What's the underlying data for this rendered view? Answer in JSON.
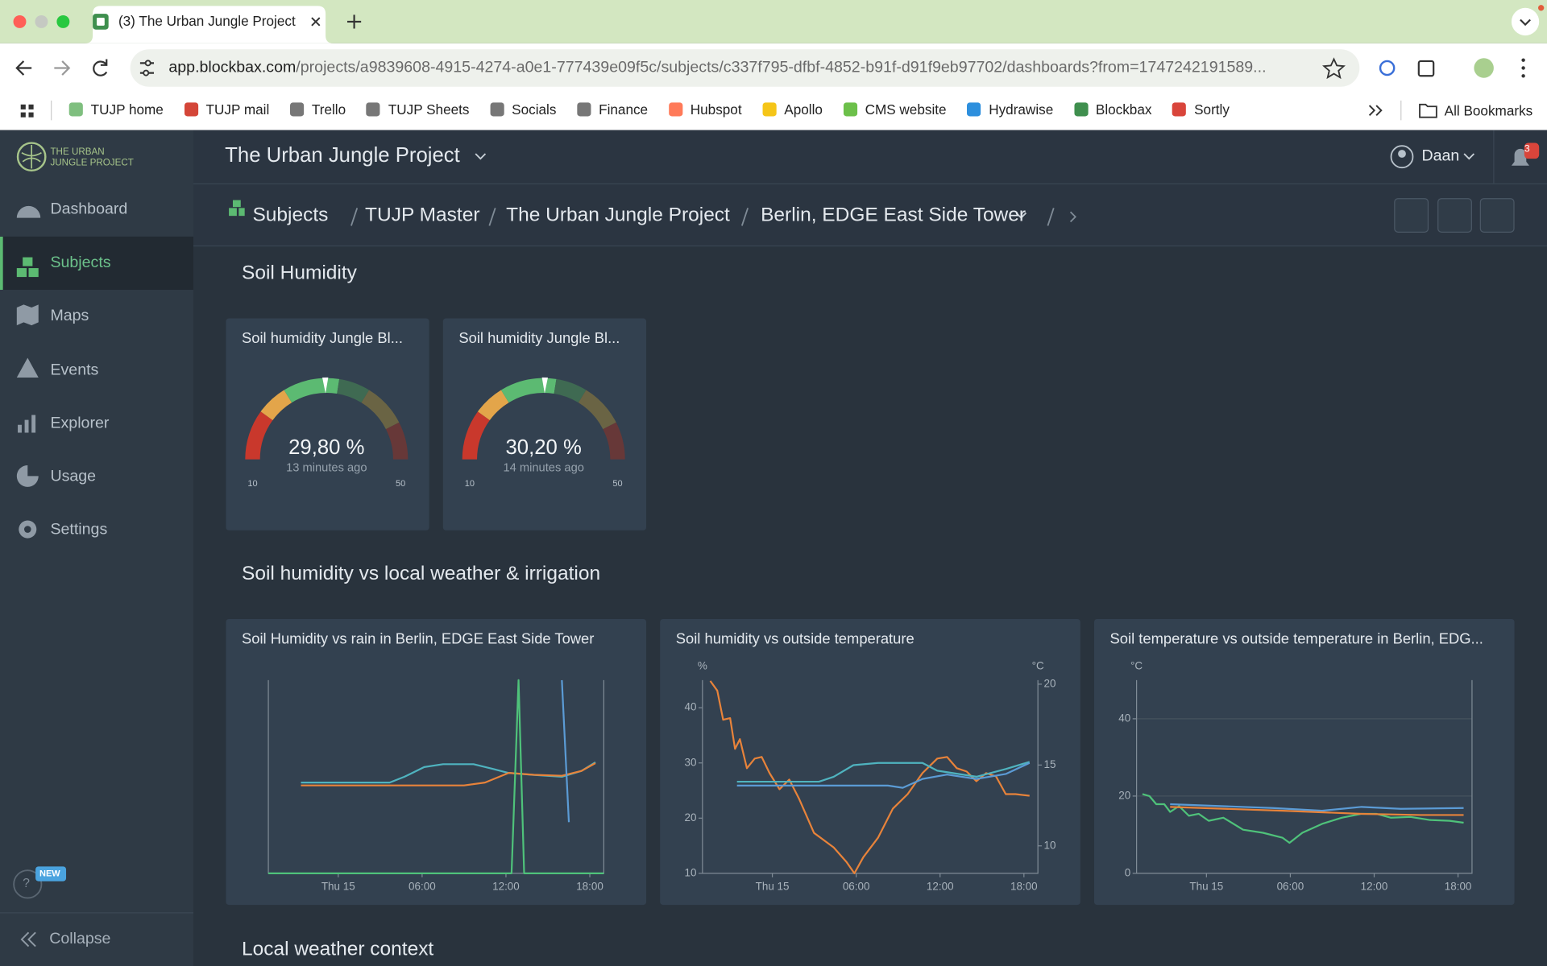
{
  "browser": {
    "tab_title": "(3) The Urban Jungle Project",
    "url_host": "app.blockbax.com",
    "url_path": "/projects/a9839608-4915-4274-a0e1-777439e09f5c/subjects/c337f795-dfbf-4852-b91f-d91f9eb97702/dashboards?from=1747242191589...",
    "bookmarks": [
      "TUJP home",
      "TUJP mail",
      "Trello",
      "TUJP Sheets",
      "Socials",
      "Finance",
      "Hubspot",
      "Apollo",
      "CMS website",
      "Hydrawise",
      "Blockbax",
      "Sortly"
    ],
    "all_bookmarks": "All Bookmarks"
  },
  "sidebar": {
    "logo": [
      "THE URBAN",
      "JUNGLE PROJECT"
    ],
    "items": [
      "Dashboard",
      "Subjects",
      "Maps",
      "Events",
      "Explorer",
      "Usage",
      "Settings"
    ],
    "help": "?",
    "badge": "NEW",
    "collapse": "Collapse"
  },
  "header": {
    "project": "The Urban Jungle Project",
    "user": "Daan",
    "notifications": 3
  },
  "breadcrumbs": [
    "Subjects",
    "TUJP Master",
    "The Urban Jungle Project",
    "Berlin, EDGE East Side Tower"
  ],
  "sections": [
    "Soil Humidity",
    "Soil humidity vs local weather & irrigation",
    "Local weather context"
  ],
  "gauges": [
    {
      "title": "Soil humidity Jungle Bl...",
      "value": 29.8,
      "value_label": "29,80 %",
      "time": "13 minutes ago",
      "min": 10,
      "max": 50,
      "bands": [
        {
          "from": 10,
          "to": 18,
          "color": "#c9382c"
        },
        {
          "from": 18,
          "to": 23,
          "color": "#e3a54a"
        },
        {
          "from": 23,
          "to": 32,
          "color": "#5cba72"
        },
        {
          "from": 32,
          "to": 37,
          "color": "#3f6a52"
        },
        {
          "from": 37,
          "to": 44,
          "color": "#6a6444"
        },
        {
          "from": 44,
          "to": 50,
          "color": "#673838"
        }
      ]
    },
    {
      "title": "Soil humidity Jungle Bl...",
      "value": 30.2,
      "value_label": "30,20 %",
      "time": "14 minutes ago",
      "min": 10,
      "max": 50,
      "bands": [
        {
          "from": 10,
          "to": 18,
          "color": "#c9382c"
        },
        {
          "from": 18,
          "to": 23,
          "color": "#e3a54a"
        },
        {
          "from": 23,
          "to": 32,
          "color": "#5cba72"
        },
        {
          "from": 32,
          "to": 37,
          "color": "#3f6a52"
        },
        {
          "from": 37,
          "to": 44,
          "color": "#6a6444"
        },
        {
          "from": 44,
          "to": 50,
          "color": "#673838"
        }
      ]
    }
  ],
  "charts": [
    {
      "type": "line",
      "title": "Soil Humidity vs rain in Berlin, EDGE East Side Tower",
      "xlim": [
        -5,
        19
      ],
      "xticks": [
        {
          "value": 0,
          "label": "Thu 15"
        },
        {
          "value": 6,
          "label": "06:00"
        },
        {
          "value": 12,
          "label": "12:00"
        },
        {
          "value": 18,
          "label": "18:00"
        }
      ],
      "ylim": [
        0,
        100
      ],
      "series": [
        {
          "color": "#4fb3bf",
          "x": [
            -2.67,
            3.68,
            4.74,
            6.15,
            7.5,
            9.68,
            11.1,
            12.15,
            13.9,
            16,
            17.4,
            18.4
          ],
          "values": [
            47,
            47,
            50,
            55,
            56.5,
            56.5,
            54,
            52,
            51,
            50,
            53,
            57.5
          ]
        },
        {
          "color": "#e8833a",
          "x": [
            -2.67,
            9,
            10.5,
            12.2,
            14,
            16,
            17.4,
            18.4
          ],
          "values": [
            45.5,
            45.5,
            47,
            52,
            51,
            50.5,
            53,
            57
          ]
        },
        {
          "color": "#4fc27a",
          "x": [
            -5,
            12.4,
            12.9,
            13.3,
            19
          ],
          "values": [
            0,
            0,
            100,
            0,
            0
          ]
        },
        {
          "color": "#5b9bd5",
          "x": [
            16,
            16.5
          ],
          "values": [
            100,
            26.5
          ]
        }
      ]
    },
    {
      "type": "line",
      "title": "Soil humidity vs outside temperature",
      "xlim": [
        -5,
        19
      ],
      "xticks": [
        {
          "value": 0,
          "label": "Thu 15"
        },
        {
          "value": 6,
          "label": "06:00"
        },
        {
          "value": 12,
          "label": "12:00"
        },
        {
          "value": 18,
          "label": "18:00"
        }
      ],
      "ylabel": "%",
      "ylim": [
        10,
        45
      ],
      "yticks": [
        10,
        20,
        30,
        40
      ],
      "y2label": "°C",
      "y2lim": [
        8.3,
        20.25
      ],
      "y2ticks": [
        10,
        15,
        20
      ],
      "series": [
        {
          "color": "#e8833a",
          "axis": "y2",
          "x": [
            -4.44,
            -3.94,
            -3.52,
            -3.02,
            -2.67,
            -2.32,
            -1.82,
            -1.26,
            -0.76,
            -0.2,
            0.51,
            1.21,
            1.92,
            2.98,
            4.39,
            5.31,
            5.87,
            6.51,
            7.56,
            8.62,
            9.68,
            10.74,
            11.8,
            12.5,
            13.2,
            13.9,
            14.6,
            15.3,
            16,
            16.7,
            17.4,
            18.4
          ],
          "values": [
            20.2,
            19.6,
            17.8,
            17.9,
            16,
            16.6,
            14.8,
            15.4,
            15.5,
            14.5,
            13.5,
            14.1,
            12.9,
            10.8,
            9.9,
            9,
            8.3,
            9.3,
            10.5,
            12.3,
            13.2,
            14.5,
            15.4,
            15.5,
            14.8,
            14.6,
            14,
            14.5,
            14.3,
            13.2,
            13.2,
            13.1
          ]
        },
        {
          "color": "#4fb3bf",
          "x": [
            -2.53,
            3.33,
            4.39,
            5.8,
            7.56,
            10.74,
            11.8,
            14.6,
            16.7,
            18.4
          ],
          "values": [
            26.6,
            26.6,
            27.5,
            29.6,
            30,
            30,
            28.6,
            27.5,
            28.9,
            30.2
          ]
        },
        {
          "color": "#5b9bd5",
          "x": [
            -2.53,
            8.27,
            9.33,
            10.74,
            12.5,
            14.6,
            16.7,
            18.4
          ],
          "values": [
            25.9,
            25.9,
            25.5,
            27.1,
            27.9,
            27.1,
            28,
            30
          ]
        }
      ]
    },
    {
      "type": "line",
      "title": "Soil temperature vs outside temperature in Berlin, EDG...",
      "xlim": [
        -5,
        19
      ],
      "xticks": [
        {
          "value": 0,
          "label": "Thu 15"
        },
        {
          "value": 6,
          "label": "06:00"
        },
        {
          "value": 12,
          "label": "12:00"
        },
        {
          "value": 18,
          "label": "18:00"
        }
      ],
      "ylabel": "°C",
      "ylim": [
        0,
        50
      ],
      "yticks": [
        0,
        20,
        40
      ],
      "grid": true,
      "series": [
        {
          "color": "#4fc27a",
          "x": [
            -4.58,
            -4.08,
            -3.59,
            -3.02,
            -2.6,
            -1.96,
            -1.26,
            -0.55,
            0.16,
            1.21,
            2.62,
            4.04,
            5.45,
            5.94,
            6.86,
            8.27,
            9.68,
            11.1,
            12.15,
            13.2,
            14.6,
            16,
            17.4,
            18.4
          ],
          "values": [
            20.5,
            20,
            17.9,
            17.9,
            15.9,
            17.4,
            14.9,
            15.4,
            13.6,
            14.4,
            11.3,
            10.5,
            9.2,
            7.9,
            10.5,
            12.8,
            14.4,
            15.4,
            15.4,
            14.4,
            14.6,
            13.8,
            13.6,
            13.1
          ]
        },
        {
          "color": "#5b9bd5",
          "x": [
            -2.6,
            4.75,
            8.27,
            11.1,
            13.9,
            18.4
          ],
          "values": [
            17.9,
            16.9,
            16.2,
            17.2,
            16.7,
            16.9
          ]
        },
        {
          "color": "#e8833a",
          "x": [
            -2.6,
            5.45,
            11.1,
            15.3,
            18.4
          ],
          "values": [
            17.2,
            16.2,
            15.4,
            15.1,
            15.1
          ]
        }
      ]
    }
  ]
}
